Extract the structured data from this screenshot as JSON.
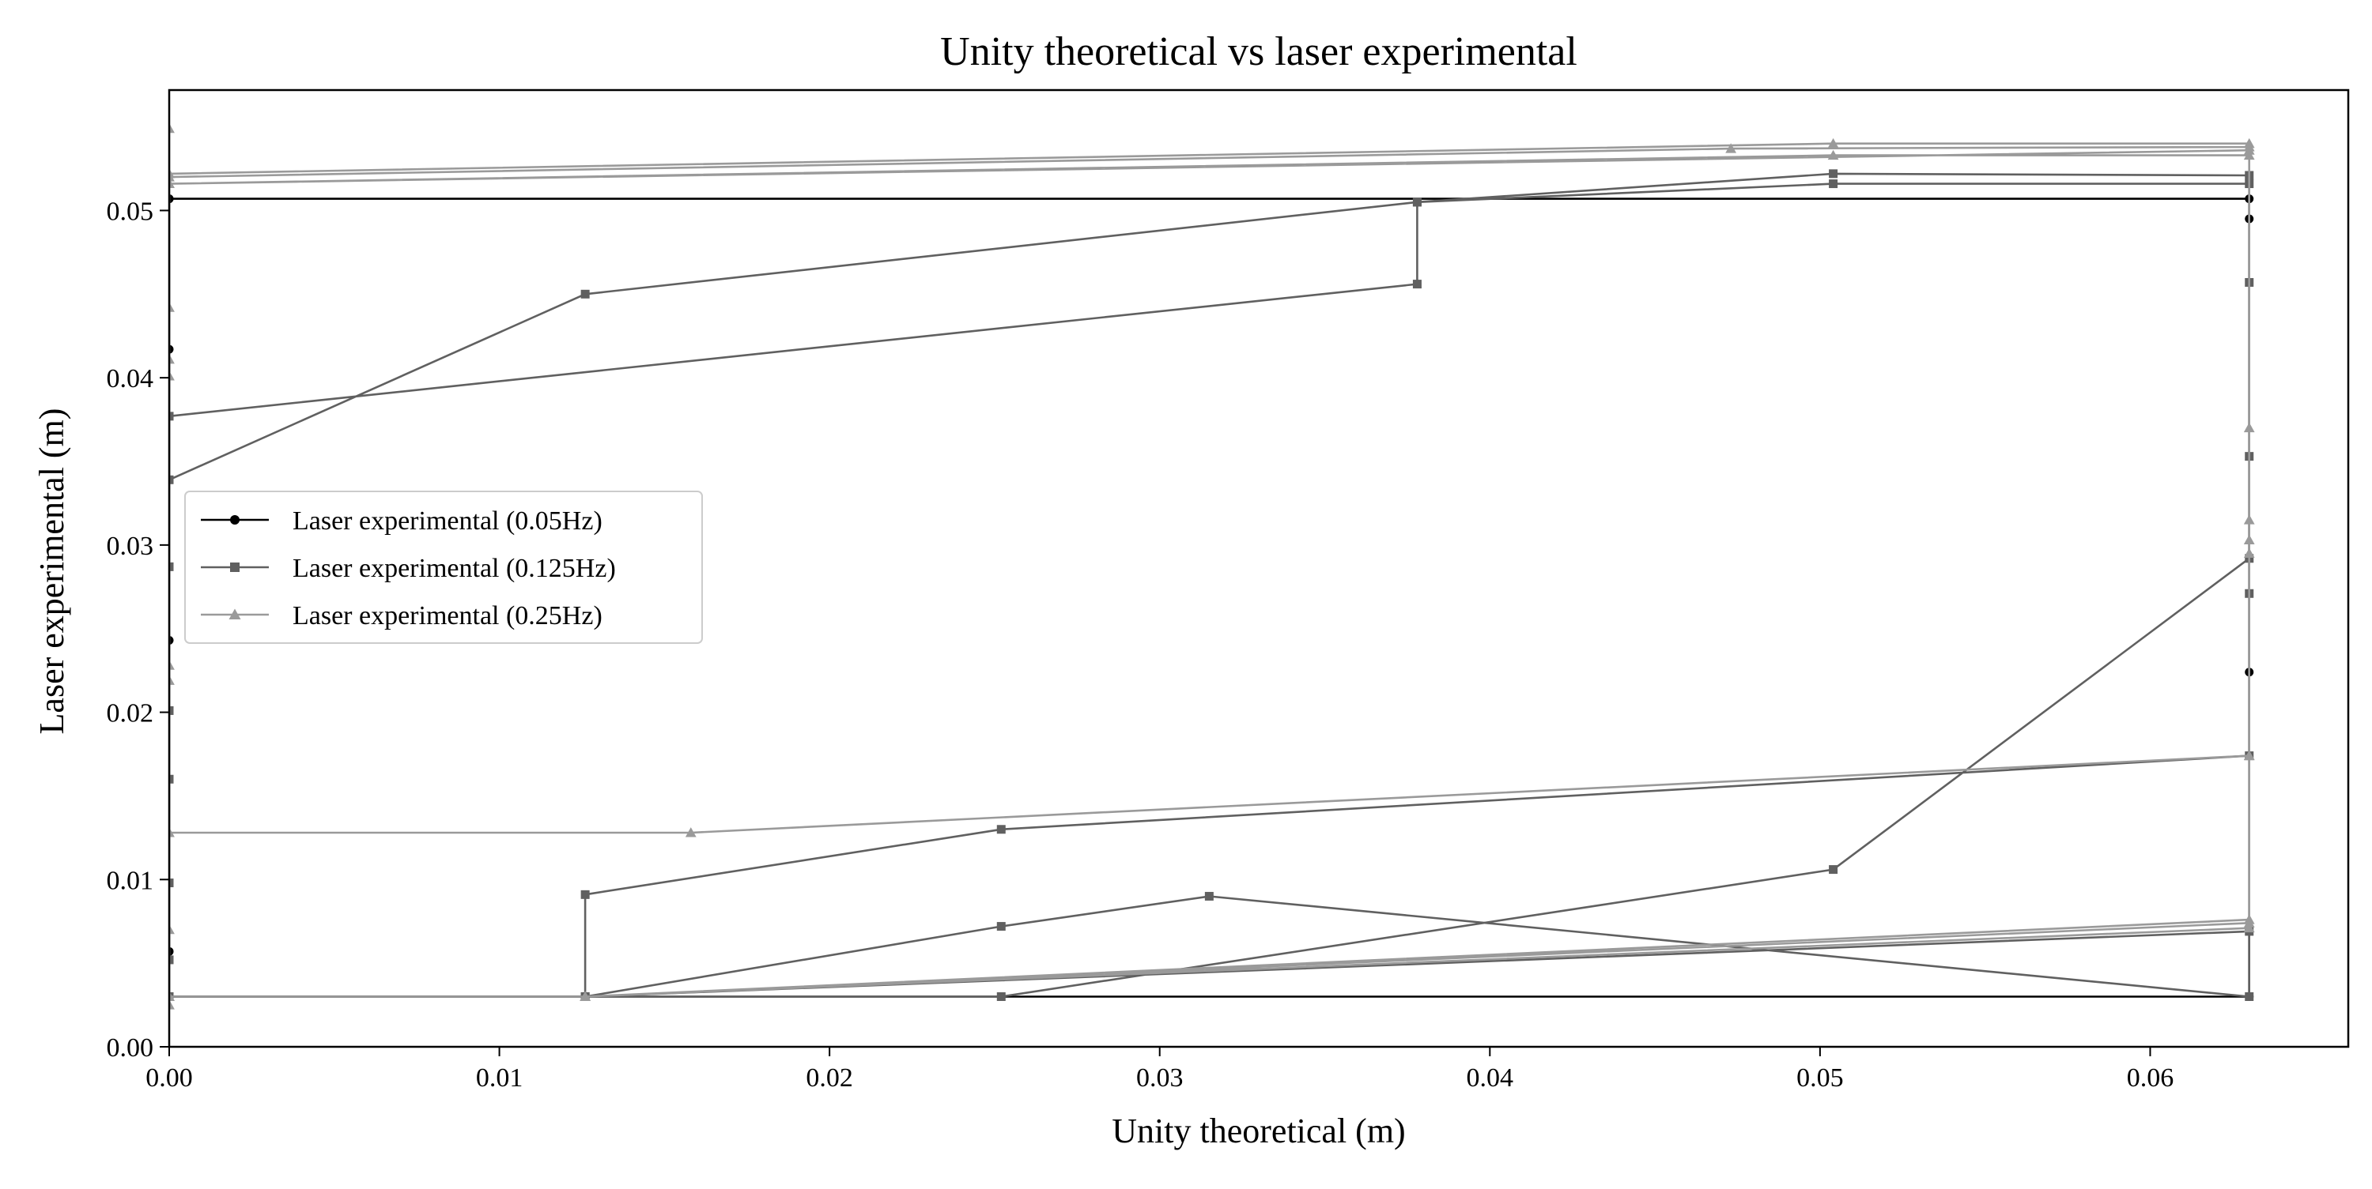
{
  "chart_data": {
    "type": "line",
    "title": "Unity theoretical vs laser experimental",
    "xlabel": "Unity theoretical (m)",
    "ylabel": "Laser experimental (m)",
    "xlim": [
      0.0,
      0.066
    ],
    "ylim": [
      0.0,
      0.0572
    ],
    "x_ticks": [
      "0.00",
      "0.01",
      "0.02",
      "0.03",
      "0.04",
      "0.05",
      "0.06"
    ],
    "y_ticks": [
      "0.00",
      "0.01",
      "0.02",
      "0.03",
      "0.04",
      "0.05"
    ],
    "grid": false,
    "legend_position": "center-left",
    "series": [
      {
        "name": "Laser experimental (0.05Hz)",
        "color": "#000000",
        "marker": "circle",
        "points": [
          [
            0.0,
            0.0507
          ],
          [
            0.063,
            0.0507
          ],
          [
            0.063,
            0.0495
          ],
          [
            0.063,
            0.0224
          ],
          [
            0.063,
            0.003
          ],
          [
            0.0,
            0.003
          ],
          [
            0.0,
            0.0057
          ],
          [
            0.0,
            0.0243
          ],
          [
            0.0,
            0.0417
          ],
          [
            0.0,
            0.0507
          ]
        ]
      },
      {
        "name": "Laser experimental (0.125Hz)",
        "color": "#606060",
        "marker": "square",
        "points": [
          [
            0.0,
            0.0339
          ],
          [
            0.0126,
            0.045
          ],
          [
            0.0378,
            0.0505
          ],
          [
            0.0504,
            0.0522
          ],
          [
            0.063,
            0.0521
          ],
          [
            0.063,
            0.0457
          ],
          [
            0.063,
            0.0353
          ],
          [
            0.063,
            0.0292
          ],
          [
            0.0504,
            0.0106
          ],
          [
            0.0252,
            0.003
          ],
          [
            0.0,
            0.003
          ],
          [
            0.0,
            0.0098
          ],
          [
            0.0,
            0.016
          ],
          [
            0.0,
            0.0201
          ],
          [
            0.0,
            0.0287
          ],
          [
            0.0,
            0.0377
          ],
          [
            0.0378,
            0.0456
          ],
          [
            0.0378,
            0.0505
          ],
          [
            0.0504,
            0.0516
          ],
          [
            0.063,
            0.0516
          ],
          [
            0.063,
            0.0271
          ],
          [
            0.063,
            0.0174
          ],
          [
            0.0252,
            0.013
          ],
          [
            0.0126,
            0.0091
          ],
          [
            0.0126,
            0.003
          ],
          [
            0.0252,
            0.0072
          ],
          [
            0.0315,
            0.009
          ],
          [
            0.063,
            0.003
          ],
          [
            0.063,
            0.0069
          ],
          [
            0.0126,
            0.003
          ],
          [
            0.0,
            0.003
          ],
          [
            0.0,
            0.0052
          ]
        ]
      },
      {
        "name": "Laser experimental (0.25Hz)",
        "color": "#9a9a9a",
        "marker": "triangle",
        "points": [
          [
            0.0,
            0.0522
          ],
          [
            0.0504,
            0.054
          ],
          [
            0.063,
            0.054
          ],
          [
            0.063,
            0.037
          ],
          [
            0.063,
            0.0315
          ],
          [
            0.063,
            0.0303
          ],
          [
            0.063,
            0.0295
          ],
          [
            0.063,
            0.0174
          ],
          [
            0.063,
            0.0076
          ],
          [
            0.0126,
            0.003
          ],
          [
            0.0,
            0.003
          ],
          [
            0.0,
            0.0128
          ],
          [
            0.0158,
            0.0128
          ],
          [
            0.063,
            0.0174
          ],
          [
            0.063,
            0.0074
          ],
          [
            0.0126,
            0.003
          ],
          [
            0.0,
            0.003
          ],
          [
            0.0,
            0.0025
          ],
          [
            0.0,
            0.007
          ],
          [
            0.0,
            0.0219
          ],
          [
            0.0,
            0.0228
          ],
          [
            0.0,
            0.0401
          ],
          [
            0.0,
            0.0411
          ],
          [
            0.0,
            0.0442
          ],
          [
            0.0,
            0.0549
          ],
          [
            0.0,
            0.0516
          ],
          [
            0.0504,
            0.0533
          ],
          [
            0.063,
            0.0533
          ],
          [
            0.063,
            0.0538
          ],
          [
            0.0473,
            0.0537
          ],
          [
            0.0,
            0.052
          ],
          [
            0.0,
            0.0516
          ],
          [
            0.063,
            0.0536
          ],
          [
            0.063,
            0.0071
          ],
          [
            0.0126,
            0.003
          ],
          [
            0.0,
            0.003
          ]
        ]
      }
    ]
  }
}
